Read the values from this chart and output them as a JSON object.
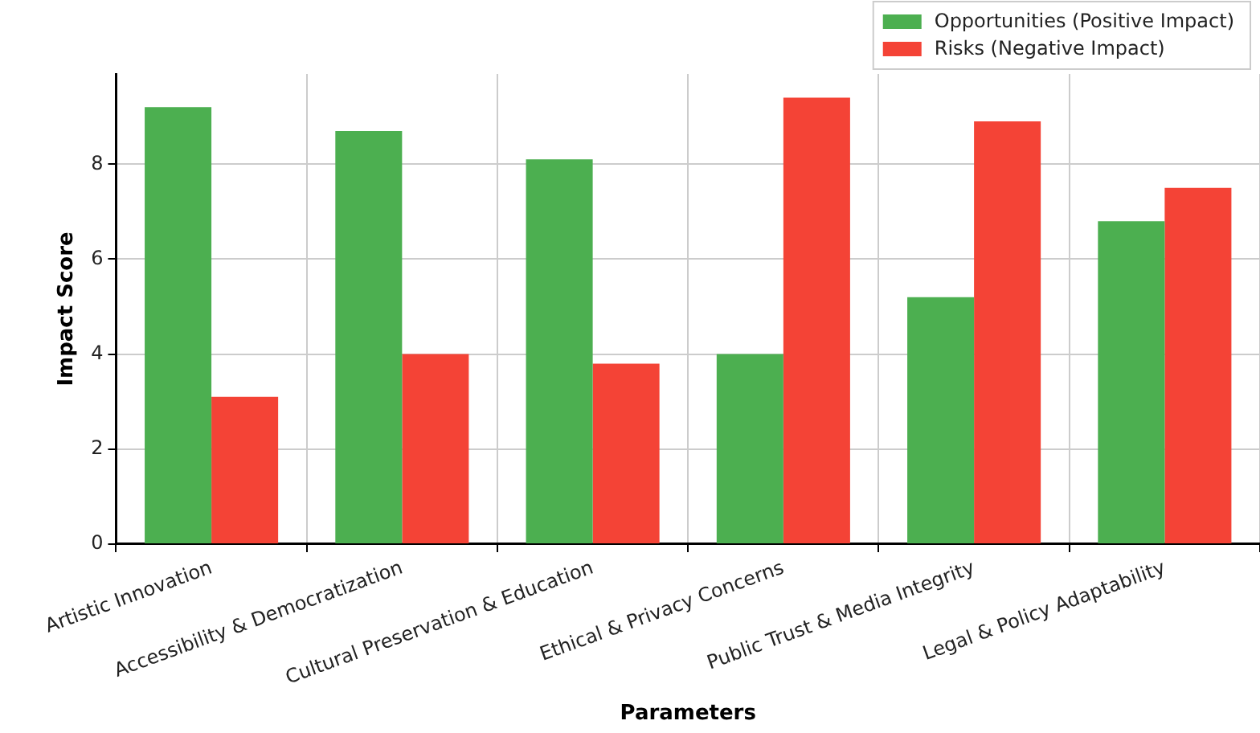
{
  "chart_data": {
    "type": "bar",
    "xlabel": "Parameters",
    "ylabel": "Impact Score",
    "categories": [
      "Artistic Innovation",
      "Accessibility & Democratization",
      "Cultural Preservation & Education",
      "Ethical & Privacy Concerns",
      "Public Trust & Media Integrity",
      "Legal & Policy Adaptability"
    ],
    "series": [
      {
        "name": "Opportunities (Positive Impact)",
        "color": "#4caf50",
        "values": [
          9.2,
          8.7,
          8.1,
          4.0,
          5.2,
          6.8
        ]
      },
      {
        "name": "Risks (Negative Impact)",
        "color": "#f44336",
        "values": [
          3.1,
          4.0,
          3.8,
          9.4,
          8.9,
          7.5
        ]
      }
    ],
    "ylim": [
      0,
      9.9
    ],
    "yticks": [
      0,
      2,
      4,
      6,
      8
    ],
    "grid": true,
    "legend": "top right"
  }
}
